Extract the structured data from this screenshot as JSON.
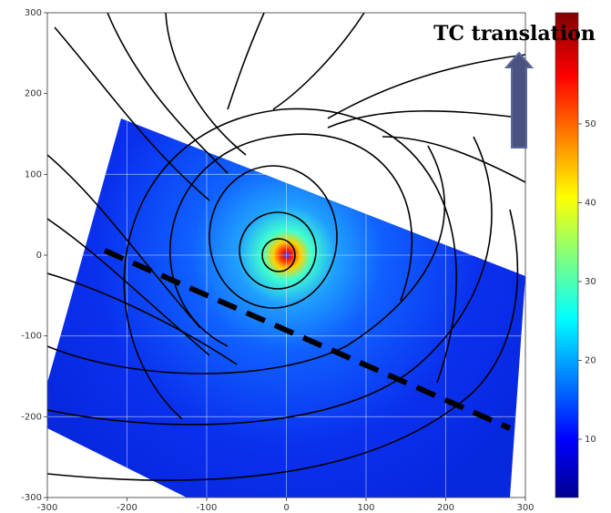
{
  "chart_data": {
    "type": "image",
    "annotation": "TC translation",
    "xlim": [
      -300,
      300
    ],
    "xticks": [
      -300,
      -200,
      -100,
      0,
      100,
      200,
      300
    ],
    "ylim": [
      -300,
      300
    ],
    "yticks": [
      -300,
      -200,
      -100,
      0,
      100,
      200,
      300
    ],
    "clim": [
      2.6,
      64.1
    ],
    "cticks": [
      10,
      20,
      30,
      40,
      50
    ],
    "grid": true
  }
}
